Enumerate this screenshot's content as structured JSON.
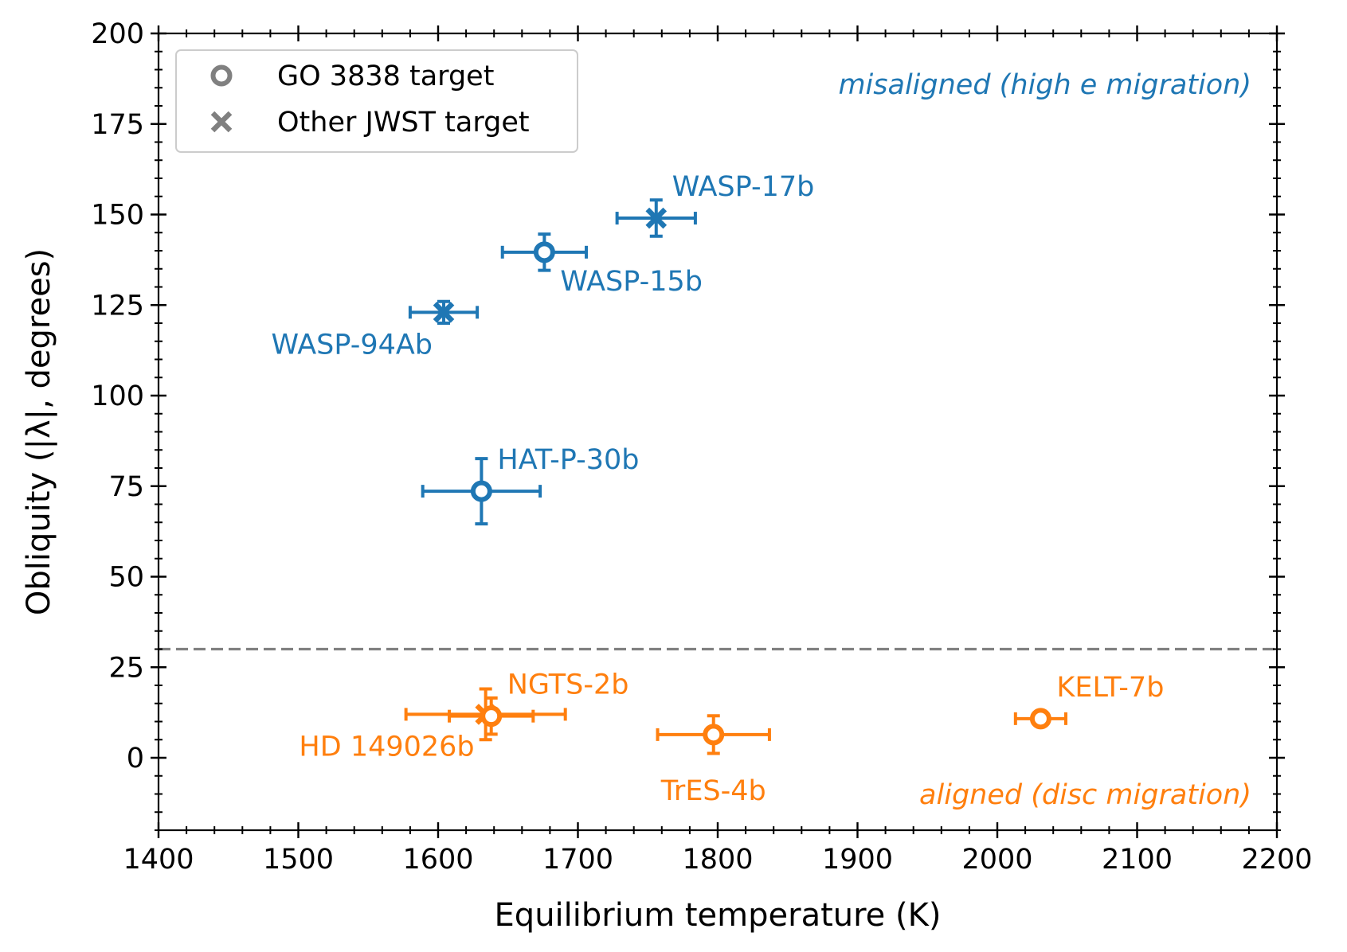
{
  "chart_data": {
    "type": "scatter",
    "title": "",
    "xlabel": "Equilibrium temperature (K)",
    "ylabel": "Obliquity (|λ|, degrees)",
    "xlim": [
      1400,
      2200
    ],
    "ylim": [
      -20,
      200
    ],
    "xticks": [
      1400,
      1500,
      1600,
      1700,
      1800,
      1900,
      2000,
      2100,
      2200
    ],
    "yticks": [
      0,
      25,
      50,
      75,
      100,
      125,
      150,
      175,
      200
    ],
    "x_minor_step": 20,
    "y_minor_step": 5,
    "grid": false,
    "colors": {
      "misaligned": "#1f77b4",
      "aligned": "#ff7f0e",
      "threshold": "#808080",
      "legend_marker": "#808080"
    },
    "threshold_line": {
      "y": 30,
      "style": "dashed"
    },
    "region_annotations": [
      {
        "text": "misaligned (high e migration)",
        "group": "misaligned",
        "position": "top-right"
      },
      {
        "text": "aligned (disc migration)",
        "group": "aligned",
        "position": "bottom-right"
      }
    ],
    "legend": {
      "position": "top-left",
      "entries": [
        {
          "label": "GO 3838 target",
          "marker": "circle"
        },
        {
          "label": "Other JWST target",
          "marker": "x"
        }
      ]
    },
    "series": [
      {
        "name": "WASP-17b",
        "x": 1756,
        "xerr": 28,
        "y": 149,
        "yerr": 5,
        "marker": "x",
        "group": "misaligned",
        "label_side": "upper-right"
      },
      {
        "name": "WASP-15b",
        "x": 1676,
        "xerr": 30,
        "y": 139.6,
        "yerr": 5,
        "marker": "circle",
        "group": "misaligned",
        "label_side": "lower-right"
      },
      {
        "name": "WASP-94Ab",
        "x": 1604,
        "xerr": 24,
        "y": 123,
        "yerr": 3,
        "marker": "x",
        "group": "misaligned",
        "label_side": "lower-left"
      },
      {
        "name": "HAT-P-30b",
        "x": 1631,
        "xerr": 42,
        "y": 73.6,
        "yerr": 9,
        "marker": "circle",
        "group": "misaligned",
        "label_side": "upper-right"
      },
      {
        "name": "HD 149026b",
        "x": 1634,
        "xerr": 57,
        "y": 12,
        "yerr": 7,
        "marker": "x",
        "group": "aligned",
        "label_side": "lower-left"
      },
      {
        "name": "NGTS-2b",
        "x": 1638,
        "xerr": 30,
        "y": 11.5,
        "yerr": 5,
        "marker": "circle",
        "group": "aligned",
        "label_side": "upper-right"
      },
      {
        "name": "TrES-4b",
        "x": 1797,
        "xerr": 40,
        "y": 6.4,
        "yerr": 5.2,
        "marker": "circle",
        "group": "aligned",
        "label_side": "below"
      },
      {
        "name": "KELT-7b",
        "x": 2031,
        "xerr": 18,
        "y": 10.8,
        "yerr": 1.5,
        "marker": "circle",
        "group": "aligned",
        "label_side": "upper-right"
      }
    ]
  }
}
